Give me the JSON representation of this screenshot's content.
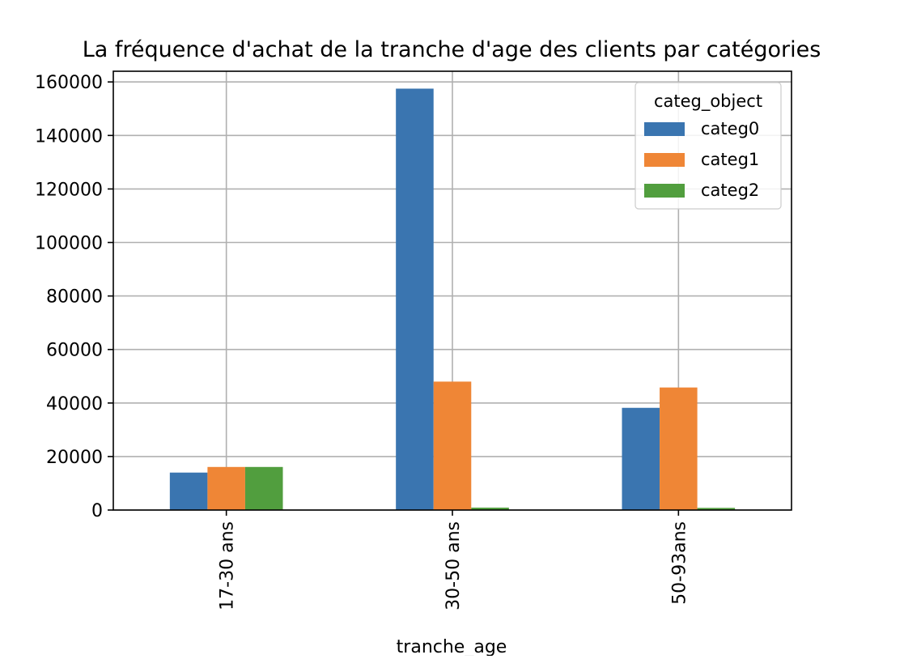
{
  "chart_data": {
    "type": "bar",
    "title": "La fréquence d'achat de la tranche d'age des clients par catégories",
    "xlabel": "tranche_age",
    "ylabel": "",
    "categories": [
      "17-30 ans",
      "30-50 ans",
      "50-93ans"
    ],
    "series": [
      {
        "name": "categ0",
        "color": "#3a75b0",
        "values": [
          14000,
          157500,
          38200
        ]
      },
      {
        "name": "categ1",
        "color": "#ef8636",
        "values": [
          16100,
          48000,
          45800
        ]
      },
      {
        "name": "categ2",
        "color": "#519e3e",
        "values": [
          16100,
          900,
          800
        ]
      }
    ],
    "ylim": [
      0,
      164000
    ],
    "yticks": [
      0,
      20000,
      40000,
      60000,
      80000,
      100000,
      120000,
      140000,
      160000
    ],
    "grid": true,
    "legend": {
      "title": "categ_object",
      "placement": "top-right"
    }
  }
}
